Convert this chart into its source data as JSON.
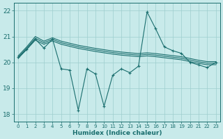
{
  "bg_color": "#c8eaea",
  "grid_color": "#9ecece",
  "line_color": "#1a6e6e",
  "x_label": "Humidex (Indice chaleur)",
  "ylim": [
    17.7,
    22.3
  ],
  "xlim": [
    -0.5,
    23.5
  ],
  "yticks": [
    18,
    19,
    20,
    21,
    22
  ],
  "xticks": [
    0,
    1,
    2,
    3,
    4,
    5,
    6,
    7,
    8,
    9,
    10,
    11,
    12,
    13,
    14,
    15,
    16,
    17,
    18,
    19,
    20,
    21,
    22,
    23
  ],
  "series_main": [
    20.2,
    20.5,
    20.9,
    20.55,
    20.9,
    19.75,
    19.7,
    18.15,
    19.75,
    19.55,
    18.3,
    19.5,
    19.75,
    19.6,
    19.85,
    21.95,
    21.3,
    20.6,
    20.45,
    20.35,
    20.0,
    19.9,
    19.8,
    20.0
  ],
  "series_top": [
    20.25,
    20.6,
    21.0,
    20.82,
    20.95,
    20.82,
    20.74,
    20.66,
    20.6,
    20.54,
    20.49,
    20.44,
    20.4,
    20.37,
    20.34,
    20.37,
    20.34,
    20.3,
    20.26,
    20.22,
    20.15,
    20.08,
    20.03,
    20.03
  ],
  "series_mid1": [
    20.2,
    20.55,
    20.93,
    20.76,
    20.89,
    20.76,
    20.68,
    20.6,
    20.54,
    20.48,
    20.43,
    20.38,
    20.34,
    20.31,
    20.28,
    20.31,
    20.28,
    20.24,
    20.2,
    20.16,
    20.09,
    20.02,
    19.97,
    19.97
  ],
  "series_mid2": [
    20.15,
    20.5,
    20.86,
    20.7,
    20.83,
    20.7,
    20.62,
    20.54,
    20.48,
    20.42,
    20.37,
    20.32,
    20.28,
    20.25,
    20.22,
    20.25,
    20.22,
    20.18,
    20.14,
    20.1,
    20.03,
    19.96,
    19.91,
    19.91
  ]
}
